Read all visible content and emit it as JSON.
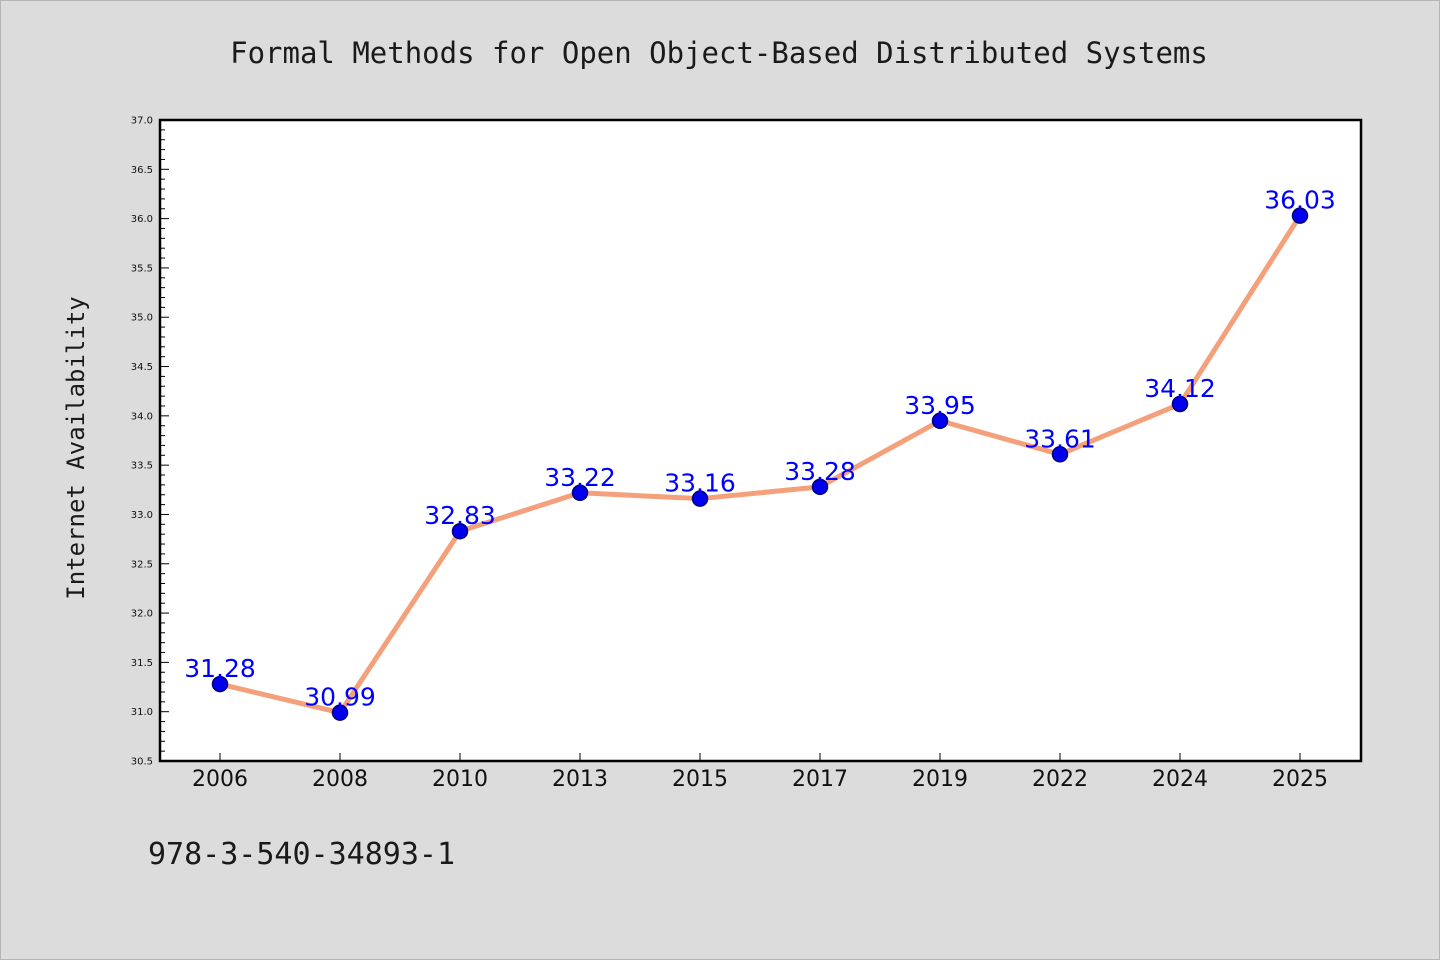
{
  "chart_data": {
    "type": "line",
    "title": "Formal Methods for Open Object-Based Distributed Systems",
    "xlabel": "",
    "ylabel": "Internet Availability",
    "categories": [
      "2006",
      "2008",
      "2010",
      "2013",
      "2015",
      "2017",
      "2019",
      "2022",
      "2024",
      "2025"
    ],
    "series": [
      {
        "values": [
          31.28,
          30.99,
          32.83,
          33.22,
          33.16,
          33.28,
          33.95,
          33.61,
          34.12,
          36.03
        ],
        "data_labels": [
          "31.28",
          "30.99",
          "32.83",
          "33.22",
          "33.16",
          "33.28",
          "33.95",
          "33.61",
          "34.12",
          "36.03"
        ]
      }
    ],
    "ylim": [
      30.5,
      37.0
    ],
    "yticks": [
      "30.5",
      "31.0",
      "31.5",
      "32.0",
      "32.5",
      "33.0",
      "33.5",
      "34.0",
      "34.5",
      "35.0",
      "35.5",
      "36.0",
      "36.5",
      "37.0"
    ],
    "grid": false,
    "legend": "none",
    "colors": {
      "line": "#f4a07a",
      "marker": "#0000ee",
      "label": "#0000ff",
      "background": "#dcdcdc",
      "plot_bg": "#ffffff"
    }
  },
  "footnote": "978-3-540-34893-1"
}
